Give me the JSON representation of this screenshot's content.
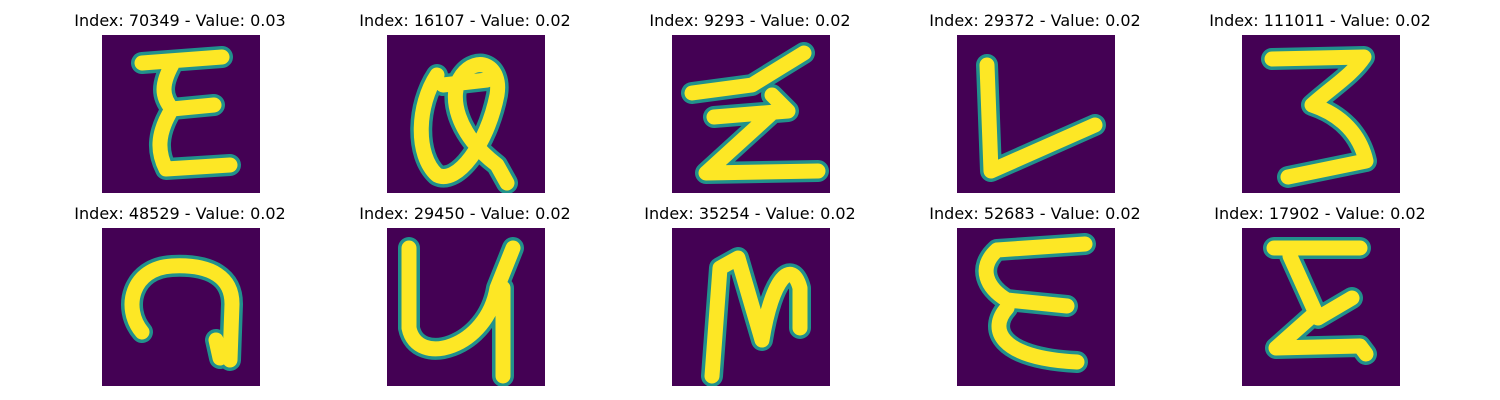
{
  "background_color": "#440154",
  "stroke_color": "#fde725",
  "edge_color": "#21918c",
  "panels": [
    {
      "title": "Index: 70349 - Value: 0.03",
      "glyph": "E-like"
    },
    {
      "title": "Index: 16107 - Value: 0.02",
      "glyph": "a-like"
    },
    {
      "title": "Index: 9293 - Value: 0.02",
      "glyph": "Z-like"
    },
    {
      "title": "Index: 29372 - Value: 0.02",
      "glyph": "L-like"
    },
    {
      "title": "Index: 111011 - Value: 0.02",
      "glyph": "3-like"
    },
    {
      "title": "Index: 48529 - Value: 0.02",
      "glyph": "n-like"
    },
    {
      "title": "Index: 29450 - Value: 0.02",
      "glyph": "y-like"
    },
    {
      "title": "Index: 35254 - Value: 0.02",
      "glyph": "N-like"
    },
    {
      "title": "Index: 52683 - Value: 0.02",
      "glyph": "E-like"
    },
    {
      "title": "Index: 17902 - Value: 0.02",
      "glyph": "E-like"
    }
  ]
}
